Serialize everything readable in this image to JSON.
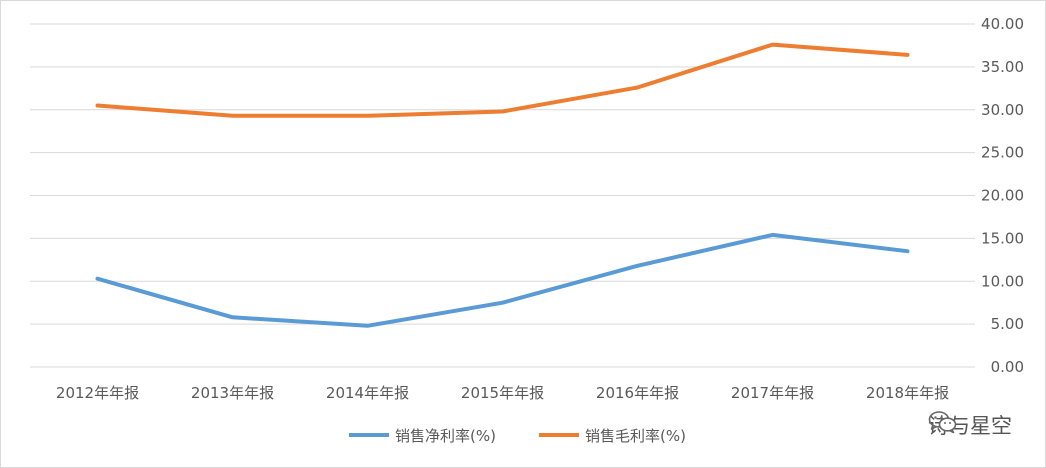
{
  "chart_data": {
    "type": "line",
    "title": "",
    "xlabel": "",
    "ylabel": "",
    "categories": [
      "2012年年报",
      "2013年年报",
      "2014年年报",
      "2015年年报",
      "2016年年报",
      "2017年年报",
      "2018年年报"
    ],
    "series": [
      {
        "name": "销售净利率(%)",
        "color": "#5b9bd5",
        "values": [
          10.3,
          5.8,
          4.8,
          7.5,
          11.8,
          15.4,
          13.5
        ]
      },
      {
        "name": "销售毛利率(%)",
        "color": "#ed7d31",
        "values": [
          30.5,
          29.3,
          29.3,
          29.8,
          32.6,
          37.6,
          36.4
        ]
      }
    ],
    "ylim": [
      0,
      40
    ],
    "yticks": [
      "0.00",
      "5.00",
      "10.00",
      "15.00",
      "20.00",
      "25.00",
      "30.00",
      "35.00",
      "40.00"
    ],
    "y_axis_side": "right",
    "grid": true,
    "legend_position": "bottom"
  },
  "watermark": {
    "text": "诗与星空",
    "icon": "wechat-icon"
  }
}
